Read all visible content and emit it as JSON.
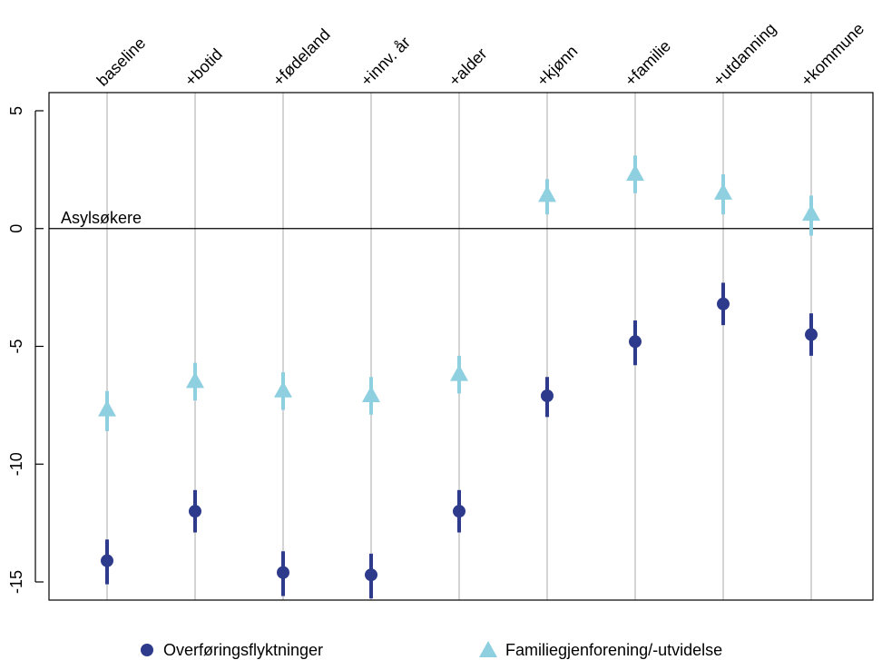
{
  "chart_data": {
    "type": "scatter",
    "title": "",
    "xlabel": "",
    "ylabel": "",
    "categories": [
      "baseline",
      "+botid",
      "+fødeland",
      "+innv. år",
      "+alder",
      "+kjønn",
      "+familie",
      "+utdanning",
      "+kommune"
    ],
    "ylim": [
      -16.0,
      5.0
    ],
    "yticks": [
      5,
      0,
      -5,
      -10,
      -15
    ],
    "ytick_labels": [
      "5",
      "0",
      "-5",
      "-10",
      "-15"
    ],
    "reference_line": {
      "value": 0,
      "label": "Asylsøkere"
    },
    "grid": "vertical lines at each category",
    "legend_position": "bottom",
    "series": [
      {
        "name": "Overføringsflyktninger",
        "marker": "circle",
        "color": "#2e3b8c",
        "values": [
          -14.1,
          -12.0,
          -14.6,
          -14.7,
          -12.0,
          -7.1,
          -4.8,
          -3.2,
          -4.5
        ],
        "lower": [
          -15.1,
          -12.9,
          -15.6,
          -15.7,
          -12.9,
          -8.0,
          -5.8,
          -4.1,
          -5.4
        ],
        "upper": [
          -13.2,
          -11.1,
          -13.7,
          -13.8,
          -11.1,
          -6.3,
          -3.9,
          -2.3,
          -3.6
        ]
      },
      {
        "name": "Familiegjenforening/-utvidelse",
        "marker": "triangle",
        "color": "#8ecfe0",
        "values": [
          -7.7,
          -6.5,
          -6.9,
          -7.1,
          -6.2,
          1.4,
          2.3,
          1.5,
          0.6
        ],
        "lower": [
          -8.6,
          -7.3,
          -7.7,
          -7.9,
          -7.0,
          0.6,
          1.5,
          0.6,
          -0.3
        ],
        "upper": [
          -6.9,
          -5.7,
          -6.1,
          -6.3,
          -5.4,
          2.1,
          3.1,
          2.3,
          1.4
        ]
      }
    ]
  }
}
